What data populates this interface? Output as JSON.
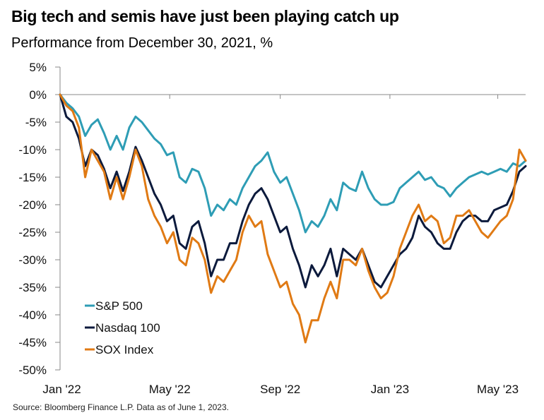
{
  "header": {
    "title": "Big tech and semis have just been playing catch up",
    "subtitle": "Performance from December 30, 2021, %"
  },
  "footer": {
    "source": "Source: Bloomberg Finance L.P. Data as of June 1, 2023."
  },
  "chart_data": {
    "type": "line",
    "title": "Big tech and semis have just been playing catch up",
    "subtitle": "Performance from December 30, 2021, %",
    "xlabel": "",
    "ylabel": "",
    "x_start": "2021-12-30",
    "x_end": "2023-06-01",
    "ylim": [
      -50,
      5
    ],
    "y_ticks": [
      5,
      0,
      -5,
      -10,
      -15,
      -20,
      -25,
      -30,
      -35,
      -40,
      -45,
      -50
    ],
    "y_tick_labels": [
      "5%",
      "0%",
      "-5%",
      "-10%",
      "-15%",
      "-20%",
      "-25%",
      "-30%",
      "-35%",
      "-40%",
      "-45%",
      "-50%"
    ],
    "x_ticks": [
      "2022-01-01",
      "2022-05-01",
      "2022-09-01",
      "2023-01-01",
      "2023-05-01"
    ],
    "x_tick_labels": [
      "Jan '22",
      "May '22",
      "Sep '22",
      "Jan '23",
      "May '23"
    ],
    "zero_line": true,
    "grid": false,
    "legend_position": "bottom-left",
    "x": [
      "2021-12-30",
      "2022-01-06",
      "2022-01-13",
      "2022-01-20",
      "2022-01-27",
      "2022-02-03",
      "2022-02-10",
      "2022-02-17",
      "2022-02-24",
      "2022-03-03",
      "2022-03-10",
      "2022-03-17",
      "2022-03-24",
      "2022-03-31",
      "2022-04-07",
      "2022-04-14",
      "2022-04-21",
      "2022-04-28",
      "2022-05-05",
      "2022-05-12",
      "2022-05-19",
      "2022-05-26",
      "2022-06-02",
      "2022-06-09",
      "2022-06-16",
      "2022-06-23",
      "2022-06-30",
      "2022-07-07",
      "2022-07-14",
      "2022-07-21",
      "2022-07-28",
      "2022-08-04",
      "2022-08-11",
      "2022-08-18",
      "2022-08-25",
      "2022-09-01",
      "2022-09-08",
      "2022-09-15",
      "2022-09-22",
      "2022-09-29",
      "2022-10-06",
      "2022-10-13",
      "2022-10-20",
      "2022-10-27",
      "2022-11-03",
      "2022-11-10",
      "2022-11-17",
      "2022-11-24",
      "2022-12-01",
      "2022-12-08",
      "2022-12-15",
      "2022-12-22",
      "2022-12-29",
      "2023-01-05",
      "2023-01-12",
      "2023-01-19",
      "2023-01-26",
      "2023-02-02",
      "2023-02-09",
      "2023-02-16",
      "2023-02-23",
      "2023-03-02",
      "2023-03-09",
      "2023-03-16",
      "2023-03-23",
      "2023-03-30",
      "2023-04-06",
      "2023-04-13",
      "2023-04-20",
      "2023-04-27",
      "2023-05-04",
      "2023-05-11",
      "2023-05-18",
      "2023-05-25",
      "2023-06-01"
    ],
    "series": [
      {
        "name": "S&P 500",
        "color": "#2e9db5",
        "values": [
          0,
          -1.5,
          -2.5,
          -4,
          -7.5,
          -5.5,
          -4.5,
          -7,
          -10,
          -7.5,
          -10,
          -6,
          -4,
          -5,
          -6.5,
          -8,
          -9,
          -11,
          -10.5,
          -15,
          -16,
          -13.5,
          -14,
          -17,
          -22,
          -20,
          -21,
          -19,
          -20,
          -17,
          -15,
          -13,
          -12,
          -10.5,
          -14,
          -16,
          -15,
          -18,
          -21,
          -25,
          -23,
          -24,
          -22,
          -19,
          -21,
          -16,
          -17,
          -17.5,
          -14,
          -17,
          -19,
          -20,
          -20,
          -19.5,
          -17,
          -16,
          -15,
          -14,
          -15.5,
          -15,
          -16.5,
          -17,
          -18.5,
          -17,
          -16,
          -15,
          -14.5,
          -14,
          -14.5,
          -14,
          -13.5,
          -14,
          -12.5,
          -13,
          -12
        ]
      },
      {
        "name": "Nasdaq 100",
        "color": "#0c1a3c",
        "values": [
          0,
          -4,
          -5,
          -8,
          -13,
          -10,
          -11,
          -13.5,
          -17,
          -14,
          -17.5,
          -14,
          -9.5,
          -12,
          -15,
          -18,
          -20,
          -23,
          -22,
          -27,
          -28,
          -24,
          -23,
          -27,
          -33,
          -30,
          -30,
          -27,
          -27,
          -23,
          -20,
          -18,
          -17,
          -19,
          -22,
          -25,
          -24,
          -28,
          -31,
          -35,
          -31,
          -33,
          -31,
          -28,
          -33,
          -28,
          -29,
          -30,
          -28,
          -31,
          -34,
          -35,
          -33,
          -31,
          -29,
          -28,
          -26,
          -22,
          -24,
          -25,
          -27,
          -28,
          -28,
          -25,
          -23,
          -22,
          -22,
          -23,
          -23,
          -21,
          -20.5,
          -20,
          -17.5,
          -14,
          -13
        ]
      },
      {
        "name": "SOX Index",
        "color": "#e07a14",
        "values": [
          0,
          -2,
          -3,
          -6,
          -15,
          -10,
          -12,
          -14,
          -19,
          -15,
          -19,
          -15,
          -10,
          -13,
          -19,
          -22,
          -24,
          -27,
          -25,
          -30,
          -31,
          -26,
          -27,
          -30,
          -36,
          -33,
          -34,
          -32,
          -30,
          -25,
          -22,
          -24,
          -23,
          -29,
          -32,
          -35,
          -34,
          -38,
          -40,
          -45,
          -41,
          -41,
          -37,
          -34,
          -37,
          -30,
          -30,
          -31,
          -28,
          -32,
          -35,
          -37,
          -36,
          -33,
          -28,
          -25,
          -22,
          -20,
          -23,
          -22,
          -23,
          -27,
          -26,
          -22,
          -22,
          -21,
          -23,
          -25,
          -26,
          -24.5,
          -23,
          -22,
          -19,
          -10,
          -12
        ]
      }
    ]
  }
}
